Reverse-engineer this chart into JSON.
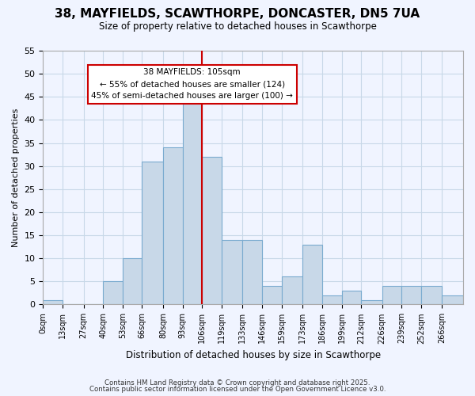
{
  "title_line1": "38, MAYFIELDS, SCAWTHORPE, DONCASTER, DN5 7UA",
  "title_line2": "Size of property relative to detached houses in Scawthorpe",
  "xlabel": "Distribution of detached houses by size in Scawthorpe",
  "ylabel": "Number of detached properties",
  "bin_labels": [
    "0sqm",
    "13sqm",
    "27sqm",
    "40sqm",
    "53sqm",
    "66sqm",
    "80sqm",
    "93sqm",
    "106sqm",
    "119sqm",
    "133sqm",
    "146sqm",
    "159sqm",
    "173sqm",
    "186sqm",
    "199sqm",
    "212sqm",
    "226sqm",
    "239sqm",
    "252sqm",
    "266sqm"
  ],
  "bin_edges": [
    0,
    13,
    27,
    40,
    53,
    66,
    80,
    93,
    106,
    119,
    133,
    146,
    159,
    173,
    186,
    199,
    212,
    226,
    239,
    252,
    266,
    280
  ],
  "bar_heights": [
    1,
    0,
    0,
    5,
    10,
    31,
    34,
    45,
    32,
    14,
    14,
    4,
    6,
    13,
    2,
    3,
    1,
    4,
    4,
    4,
    2
  ],
  "bar_color": "#c8d8e8",
  "bar_edge_color": "#7aabcf",
  "grid_color": "#c8d8e8",
  "vline_x": 106,
  "vline_color": "#cc0000",
  "annotation_box_text": "38 MAYFIELDS: 105sqm\n← 55% of detached houses are smaller (124)\n45% of semi-detached houses are larger (100) →",
  "annotation_box_color": "#ffffff",
  "annotation_box_edgecolor": "#cc0000",
  "ylim": [
    0,
    55
  ],
  "yticks": [
    0,
    5,
    10,
    15,
    20,
    25,
    30,
    35,
    40,
    45,
    50,
    55
  ],
  "footer_line1": "Contains HM Land Registry data © Crown copyright and database right 2025.",
  "footer_line2": "Contains public sector information licensed under the Open Government Licence v3.0.",
  "background_color": "#f0f4ff"
}
